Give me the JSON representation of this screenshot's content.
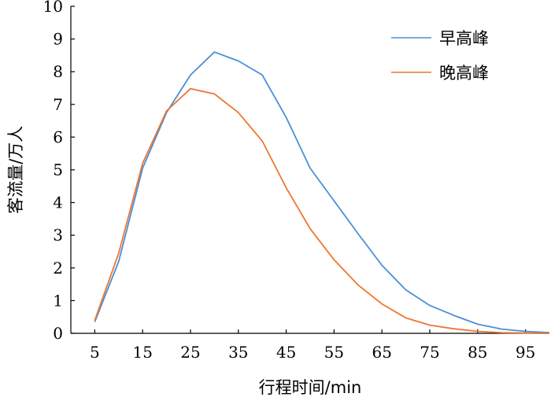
{
  "chart_data": {
    "type": "line",
    "title": "",
    "xlabel": "行程时间/min",
    "ylabel": "客流量/万人",
    "xlim": [
      0,
      100
    ],
    "ylim": [
      0,
      10
    ],
    "xticks": [
      5,
      15,
      25,
      35,
      45,
      55,
      65,
      75,
      85,
      95
    ],
    "yticks": [
      0,
      1,
      2,
      3,
      4,
      5,
      6,
      7,
      8,
      9,
      10
    ],
    "grid": false,
    "legend_position": "top-right",
    "x": [
      5,
      10,
      15,
      20,
      25,
      30,
      35,
      40,
      45,
      50,
      55,
      60,
      65,
      70,
      75,
      80,
      85,
      90,
      95,
      100
    ],
    "series": [
      {
        "name": "早高峰",
        "color": "#4a8fd8",
        "values": [
          0.35,
          2.2,
          5.05,
          6.75,
          7.9,
          8.6,
          8.33,
          7.9,
          6.6,
          5.05,
          4.05,
          3.05,
          2.08,
          1.33,
          0.85,
          0.55,
          0.28,
          0.13,
          0.06,
          0.02
        ]
      },
      {
        "name": "晚高峰",
        "color": "#ef7530",
        "values": [
          0.4,
          2.45,
          5.2,
          6.8,
          7.48,
          7.32,
          6.75,
          5.88,
          4.45,
          3.2,
          2.25,
          1.48,
          0.9,
          0.47,
          0.25,
          0.14,
          0.06,
          0.02,
          0.01,
          0.0
        ]
      }
    ]
  }
}
